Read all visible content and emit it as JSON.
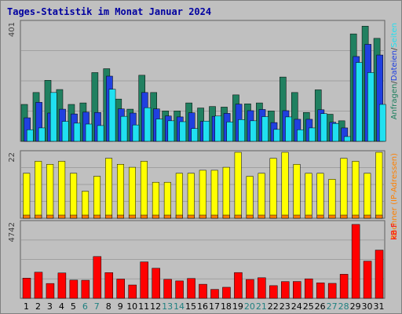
{
  "title": "Tages-Statistik im Monat Januar 2024",
  "colors": {
    "background": "#c0c0c0",
    "page": "#ffffff",
    "grid": "#a0a0a0",
    "title": "#0000a0",
    "dark_axis_text": "#404040",
    "weekend_label": "#208080",
    "anfragen": "#208060",
    "dateien": "#2040e0",
    "seiten": "#20e0f0",
    "rechner": "#ffff00",
    "besuche": "#ff8000",
    "kb": "#ff0000",
    "divider": "#000000"
  },
  "chart_data": [
    {
      "type": "bar",
      "panel": "top",
      "y_max_label": "401",
      "ylim": [
        0,
        401
      ],
      "right_legend": [
        {
          "text": "Anfragen",
          "color": "#208060"
        },
        {
          "text": "/",
          "color": "#404040"
        },
        {
          "text": "Dateien",
          "color": "#2040e0"
        },
        {
          "text": "/",
          "color": "#404040"
        },
        {
          "text": "Seiten",
          "color": "#20e0f0"
        }
      ],
      "categories": [
        "1",
        "2",
        "3",
        "4",
        "5",
        "6",
        "7",
        "8",
        "9",
        "10",
        "11",
        "12",
        "13",
        "14",
        "15",
        "16",
        "17",
        "18",
        "19",
        "20",
        "21",
        "22",
        "23",
        "24",
        "25",
        "26",
        "27",
        "28",
        "29",
        "30",
        "31"
      ],
      "series": [
        {
          "name": "Anfragen",
          "values": [
            124,
            164,
            205,
            174,
            124,
            129,
            231,
            244,
            142,
            108,
            222,
            164,
            102,
            102,
            129,
            112,
            117,
            115,
            156,
            126,
            129,
            102,
            216,
            164,
            97,
            173,
            91,
            69,
            361,
            387,
            346
          ]
        },
        {
          "name": "Dateien",
          "values": [
            79,
            131,
            95,
            108,
            92,
            98,
            97,
            219,
            109,
            95,
            164,
            109,
            85,
            82,
            96,
            67,
            84,
            94,
            125,
            103,
            107,
            63,
            103,
            74,
            74,
            106,
            64,
            45,
            285,
            326,
            290
          ]
        },
        {
          "name": "Seiten",
          "values": [
            39,
            45,
            164,
            67,
            61,
            58,
            53,
            175,
            84,
            55,
            113,
            75,
            69,
            66,
            43,
            68,
            85,
            65,
            73,
            69,
            83,
            40,
            82,
            39,
            45,
            93,
            60,
            16,
            265,
            231,
            124
          ]
        }
      ]
    },
    {
      "type": "bar",
      "panel": "middle",
      "y_max_label": "22",
      "ylim": [
        0,
        22
      ],
      "right_legend": [
        {
          "text": "Rechner (IP-Adressen)",
          "color": "#ff8000"
        }
      ],
      "categories": [
        "1",
        "2",
        "3",
        "4",
        "5",
        "6",
        "7",
        "8",
        "9",
        "10",
        "11",
        "12",
        "13",
        "14",
        "15",
        "16",
        "17",
        "18",
        "19",
        "20",
        "21",
        "22",
        "23",
        "24",
        "25",
        "26",
        "27",
        "28",
        "29",
        "30",
        "31"
      ],
      "series": [
        {
          "name": "Rechner (IP-Adressen)",
          "values": [
            15,
            19,
            18,
            19,
            15,
            9,
            14,
            20,
            18,
            17,
            19,
            12,
            12,
            15,
            15,
            16,
            16,
            17,
            22,
            14,
            15,
            20,
            22,
            18,
            15,
            15,
            13,
            20,
            19,
            15,
            22
          ]
        },
        {
          "name": "Besuche",
          "values": [
            1,
            1,
            1,
            1,
            1,
            1,
            1,
            1,
            1,
            1,
            1,
            1,
            1,
            1,
            1,
            1,
            1,
            1,
            1,
            1,
            1,
            1,
            1,
            1,
            1,
            1,
            1,
            1,
            1,
            1,
            1
          ]
        }
      ]
    },
    {
      "type": "bar",
      "panel": "bottom",
      "y_max_label": "4742",
      "ylim": [
        0,
        4742
      ],
      "right_legend": [
        {
          "text": "kB F",
          "color": "#ff0000"
        }
      ],
      "categories": [
        "1",
        "2",
        "3",
        "4",
        "5",
        "6",
        "7",
        "8",
        "9",
        "10",
        "11",
        "12",
        "13",
        "14",
        "15",
        "16",
        "17",
        "18",
        "19",
        "20",
        "21",
        "22",
        "23",
        "24",
        "25",
        "26",
        "27",
        "28",
        "29",
        "30",
        "31"
      ],
      "x_labels": [
        {
          "text": "1",
          "weekend": false
        },
        {
          "text": "2",
          "weekend": false
        },
        {
          "text": "3",
          "weekend": false
        },
        {
          "text": "4",
          "weekend": false
        },
        {
          "text": "5",
          "weekend": false
        },
        {
          "text": "6",
          "weekend": true
        },
        {
          "text": "7",
          "weekend": true
        },
        {
          "text": "8",
          "weekend": false
        },
        {
          "text": "9",
          "weekend": false
        },
        {
          "text": "10",
          "weekend": false
        },
        {
          "text": "11",
          "weekend": false
        },
        {
          "text": "12",
          "weekend": false
        },
        {
          "text": "13",
          "weekend": true
        },
        {
          "text": "14",
          "weekend": true
        },
        {
          "text": "15",
          "weekend": false
        },
        {
          "text": "16",
          "weekend": false
        },
        {
          "text": "17",
          "weekend": false
        },
        {
          "text": "18",
          "weekend": false
        },
        {
          "text": "19",
          "weekend": false
        },
        {
          "text": "20",
          "weekend": true
        },
        {
          "text": "21",
          "weekend": true
        },
        {
          "text": "22",
          "weekend": false
        },
        {
          "text": "23",
          "weekend": false
        },
        {
          "text": "24",
          "weekend": false
        },
        {
          "text": "25",
          "weekend": false
        },
        {
          "text": "26",
          "weekend": false
        },
        {
          "text": "27",
          "weekend": true
        },
        {
          "text": "28",
          "weekend": true
        },
        {
          "text": "29",
          "weekend": false
        },
        {
          "text": "30",
          "weekend": false
        },
        {
          "text": "31",
          "weekend": false
        }
      ],
      "series": [
        {
          "name": "kB F",
          "values": [
            1255,
            1626,
            922,
            1579,
            1134,
            1124,
            2600,
            1601,
            1197,
            830,
            2267,
            1873,
            1180,
            1082,
            1237,
            875,
            556,
            687,
            1604,
            1172,
            1280,
            788,
            1042,
            1047,
            1213,
            961,
            931,
            1498,
            4600,
            2314,
            3002
          ]
        }
      ]
    }
  ]
}
